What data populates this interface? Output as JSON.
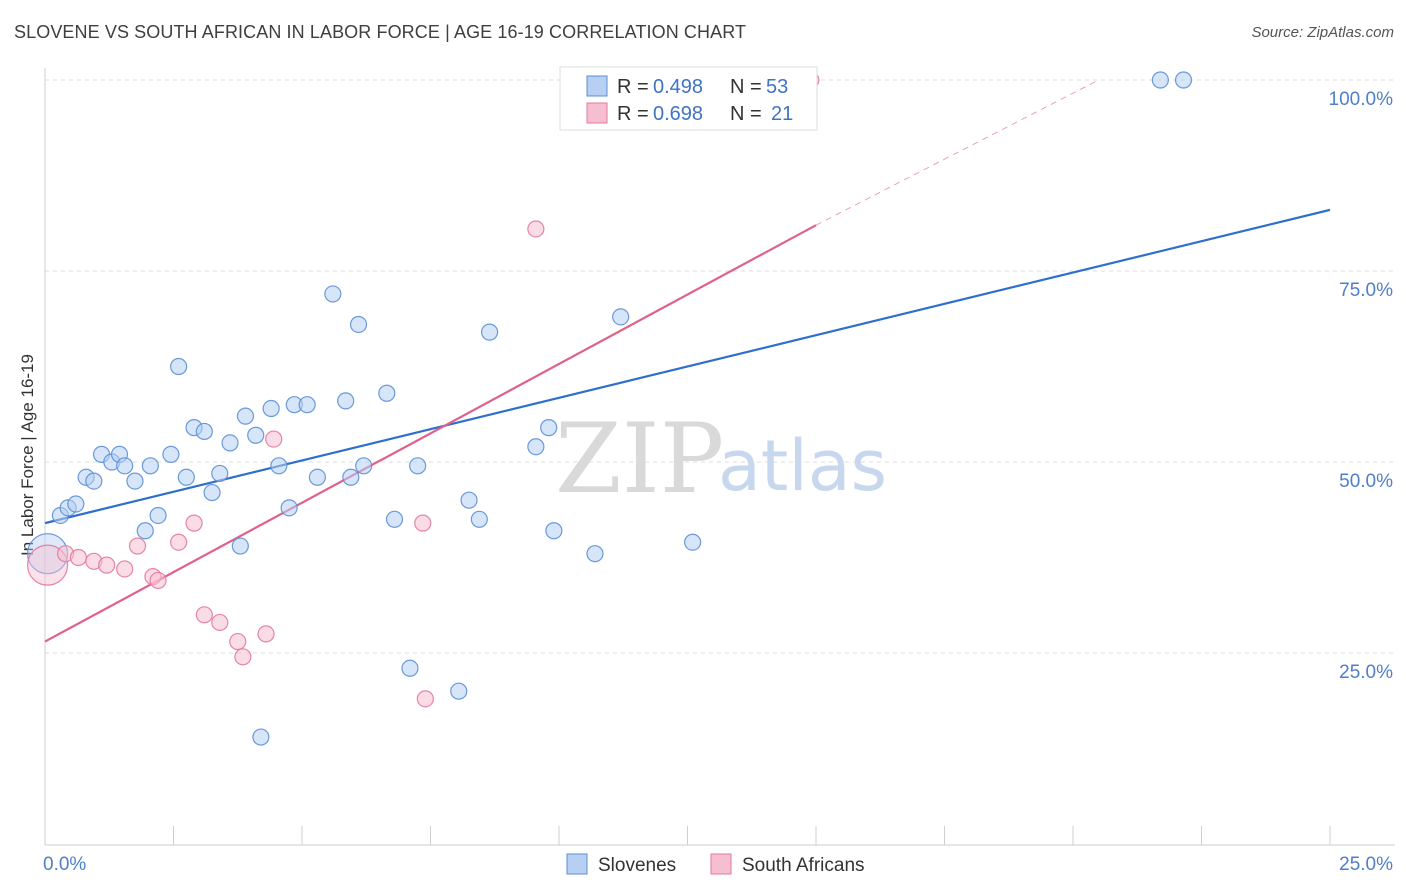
{
  "title": "SLOVENE VS SOUTH AFRICAN IN LABOR FORCE | AGE 16-19 CORRELATION CHART",
  "source": "Source: ZipAtlas.com",
  "watermark": {
    "zip": "ZIP",
    "atlas": "atlas"
  },
  "colors": {
    "blue": "#5b8fd6",
    "blue_fill": "#b6cff2",
    "blue_line": "#2f6fcc",
    "pink": "#e3799b",
    "pink_fill": "#f6bfd1",
    "pink_line": "#e0608c",
    "tick": "#4f7fc9"
  },
  "chart_data": {
    "type": "scatter",
    "xlabel": "",
    "ylabel": "In Labor Force | Age 16-19",
    "xlim": [
      0,
      25
    ],
    "ylim": [
      5,
      102
    ],
    "x_tick_labels": [
      {
        "value": 0,
        "label": "0.0%"
      },
      {
        "value": 25,
        "label": "25.0%"
      }
    ],
    "y_tick_labels": [
      {
        "value": 25,
        "label": "25.0%"
      },
      {
        "value": 50,
        "label": "50.0%"
      },
      {
        "value": 75,
        "label": "75.0%"
      },
      {
        "value": 100,
        "label": "100.0%"
      }
    ],
    "grid": true,
    "legend_placement": "top-center",
    "series": [
      {
        "name": "Slovenes",
        "R": "0.498",
        "N": "53",
        "trend": {
          "x": [
            0,
            25
          ],
          "y": [
            42,
            83
          ]
        },
        "points": [
          {
            "x": 0.05,
            "y": 38,
            "big": true
          },
          {
            "x": 0.3,
            "y": 43
          },
          {
            "x": 0.45,
            "y": 44
          },
          {
            "x": 0.6,
            "y": 44.5
          },
          {
            "x": 0.8,
            "y": 48
          },
          {
            "x": 0.95,
            "y": 47.5
          },
          {
            "x": 1.1,
            "y": 51
          },
          {
            "x": 1.3,
            "y": 50
          },
          {
            "x": 1.45,
            "y": 51
          },
          {
            "x": 1.55,
            "y": 49.5
          },
          {
            "x": 1.75,
            "y": 47.5
          },
          {
            "x": 1.95,
            "y": 41
          },
          {
            "x": 2.05,
            "y": 49.5
          },
          {
            "x": 2.2,
            "y": 43
          },
          {
            "x": 2.45,
            "y": 51
          },
          {
            "x": 2.6,
            "y": 62.5
          },
          {
            "x": 2.75,
            "y": 48
          },
          {
            "x": 2.9,
            "y": 54.5
          },
          {
            "x": 3.1,
            "y": 54
          },
          {
            "x": 3.25,
            "y": 46
          },
          {
            "x": 3.4,
            "y": 48.5
          },
          {
            "x": 3.6,
            "y": 52.5
          },
          {
            "x": 3.8,
            "y": 39
          },
          {
            "x": 3.9,
            "y": 56
          },
          {
            "x": 4.1,
            "y": 53.5
          },
          {
            "x": 4.2,
            "y": 14
          },
          {
            "x": 4.4,
            "y": 57
          },
          {
            "x": 4.55,
            "y": 49.5
          },
          {
            "x": 4.75,
            "y": 44
          },
          {
            "x": 4.85,
            "y": 57.5
          },
          {
            "x": 5.1,
            "y": 57.5
          },
          {
            "x": 5.3,
            "y": 48
          },
          {
            "x": 5.6,
            "y": 72
          },
          {
            "x": 5.85,
            "y": 58
          },
          {
            "x": 5.95,
            "y": 48
          },
          {
            "x": 6.1,
            "y": 68
          },
          {
            "x": 6.2,
            "y": 49.5
          },
          {
            "x": 6.65,
            "y": 59
          },
          {
            "x": 6.8,
            "y": 42.5
          },
          {
            "x": 7.1,
            "y": 23
          },
          {
            "x": 7.25,
            "y": 49.5
          },
          {
            "x": 8.05,
            "y": 20
          },
          {
            "x": 8.25,
            "y": 45
          },
          {
            "x": 8.45,
            "y": 42.5
          },
          {
            "x": 8.65,
            "y": 67
          },
          {
            "x": 9.55,
            "y": 52
          },
          {
            "x": 9.8,
            "y": 54.5
          },
          {
            "x": 9.9,
            "y": 41
          },
          {
            "x": 10.7,
            "y": 38
          },
          {
            "x": 11.2,
            "y": 69
          },
          {
            "x": 12.6,
            "y": 39.5
          },
          {
            "x": 21.7,
            "y": 100
          },
          {
            "x": 22.15,
            "y": 100
          }
        ]
      },
      {
        "name": "South Africans",
        "R": "0.698",
        "N": "21",
        "trend": {
          "x": [
            0,
            15
          ],
          "y": [
            26.5,
            81
          ]
        },
        "trend_dashed": {
          "x": [
            15,
            20.5
          ],
          "y": [
            81,
            100
          ]
        },
        "points": [
          {
            "x": 0.05,
            "y": 36.5,
            "big": true
          },
          {
            "x": 0.4,
            "y": 38
          },
          {
            "x": 0.65,
            "y": 37.5
          },
          {
            "x": 0.95,
            "y": 37
          },
          {
            "x": 1.2,
            "y": 36.5
          },
          {
            "x": 1.55,
            "y": 36
          },
          {
            "x": 1.8,
            "y": 39
          },
          {
            "x": 2.1,
            "y": 35
          },
          {
            "x": 2.2,
            "y": 34.5
          },
          {
            "x": 2.6,
            "y": 39.5
          },
          {
            "x": 2.9,
            "y": 42
          },
          {
            "x": 3.1,
            "y": 30
          },
          {
            "x": 3.4,
            "y": 29
          },
          {
            "x": 3.75,
            "y": 26.5
          },
          {
            "x": 3.85,
            "y": 24.5
          },
          {
            "x": 4.3,
            "y": 27.5
          },
          {
            "x": 4.45,
            "y": 53
          },
          {
            "x": 7.35,
            "y": 42
          },
          {
            "x": 7.4,
            "y": 19
          },
          {
            "x": 9.55,
            "y": 80.5
          },
          {
            "x": 14.9,
            "y": 100
          }
        ]
      }
    ]
  }
}
